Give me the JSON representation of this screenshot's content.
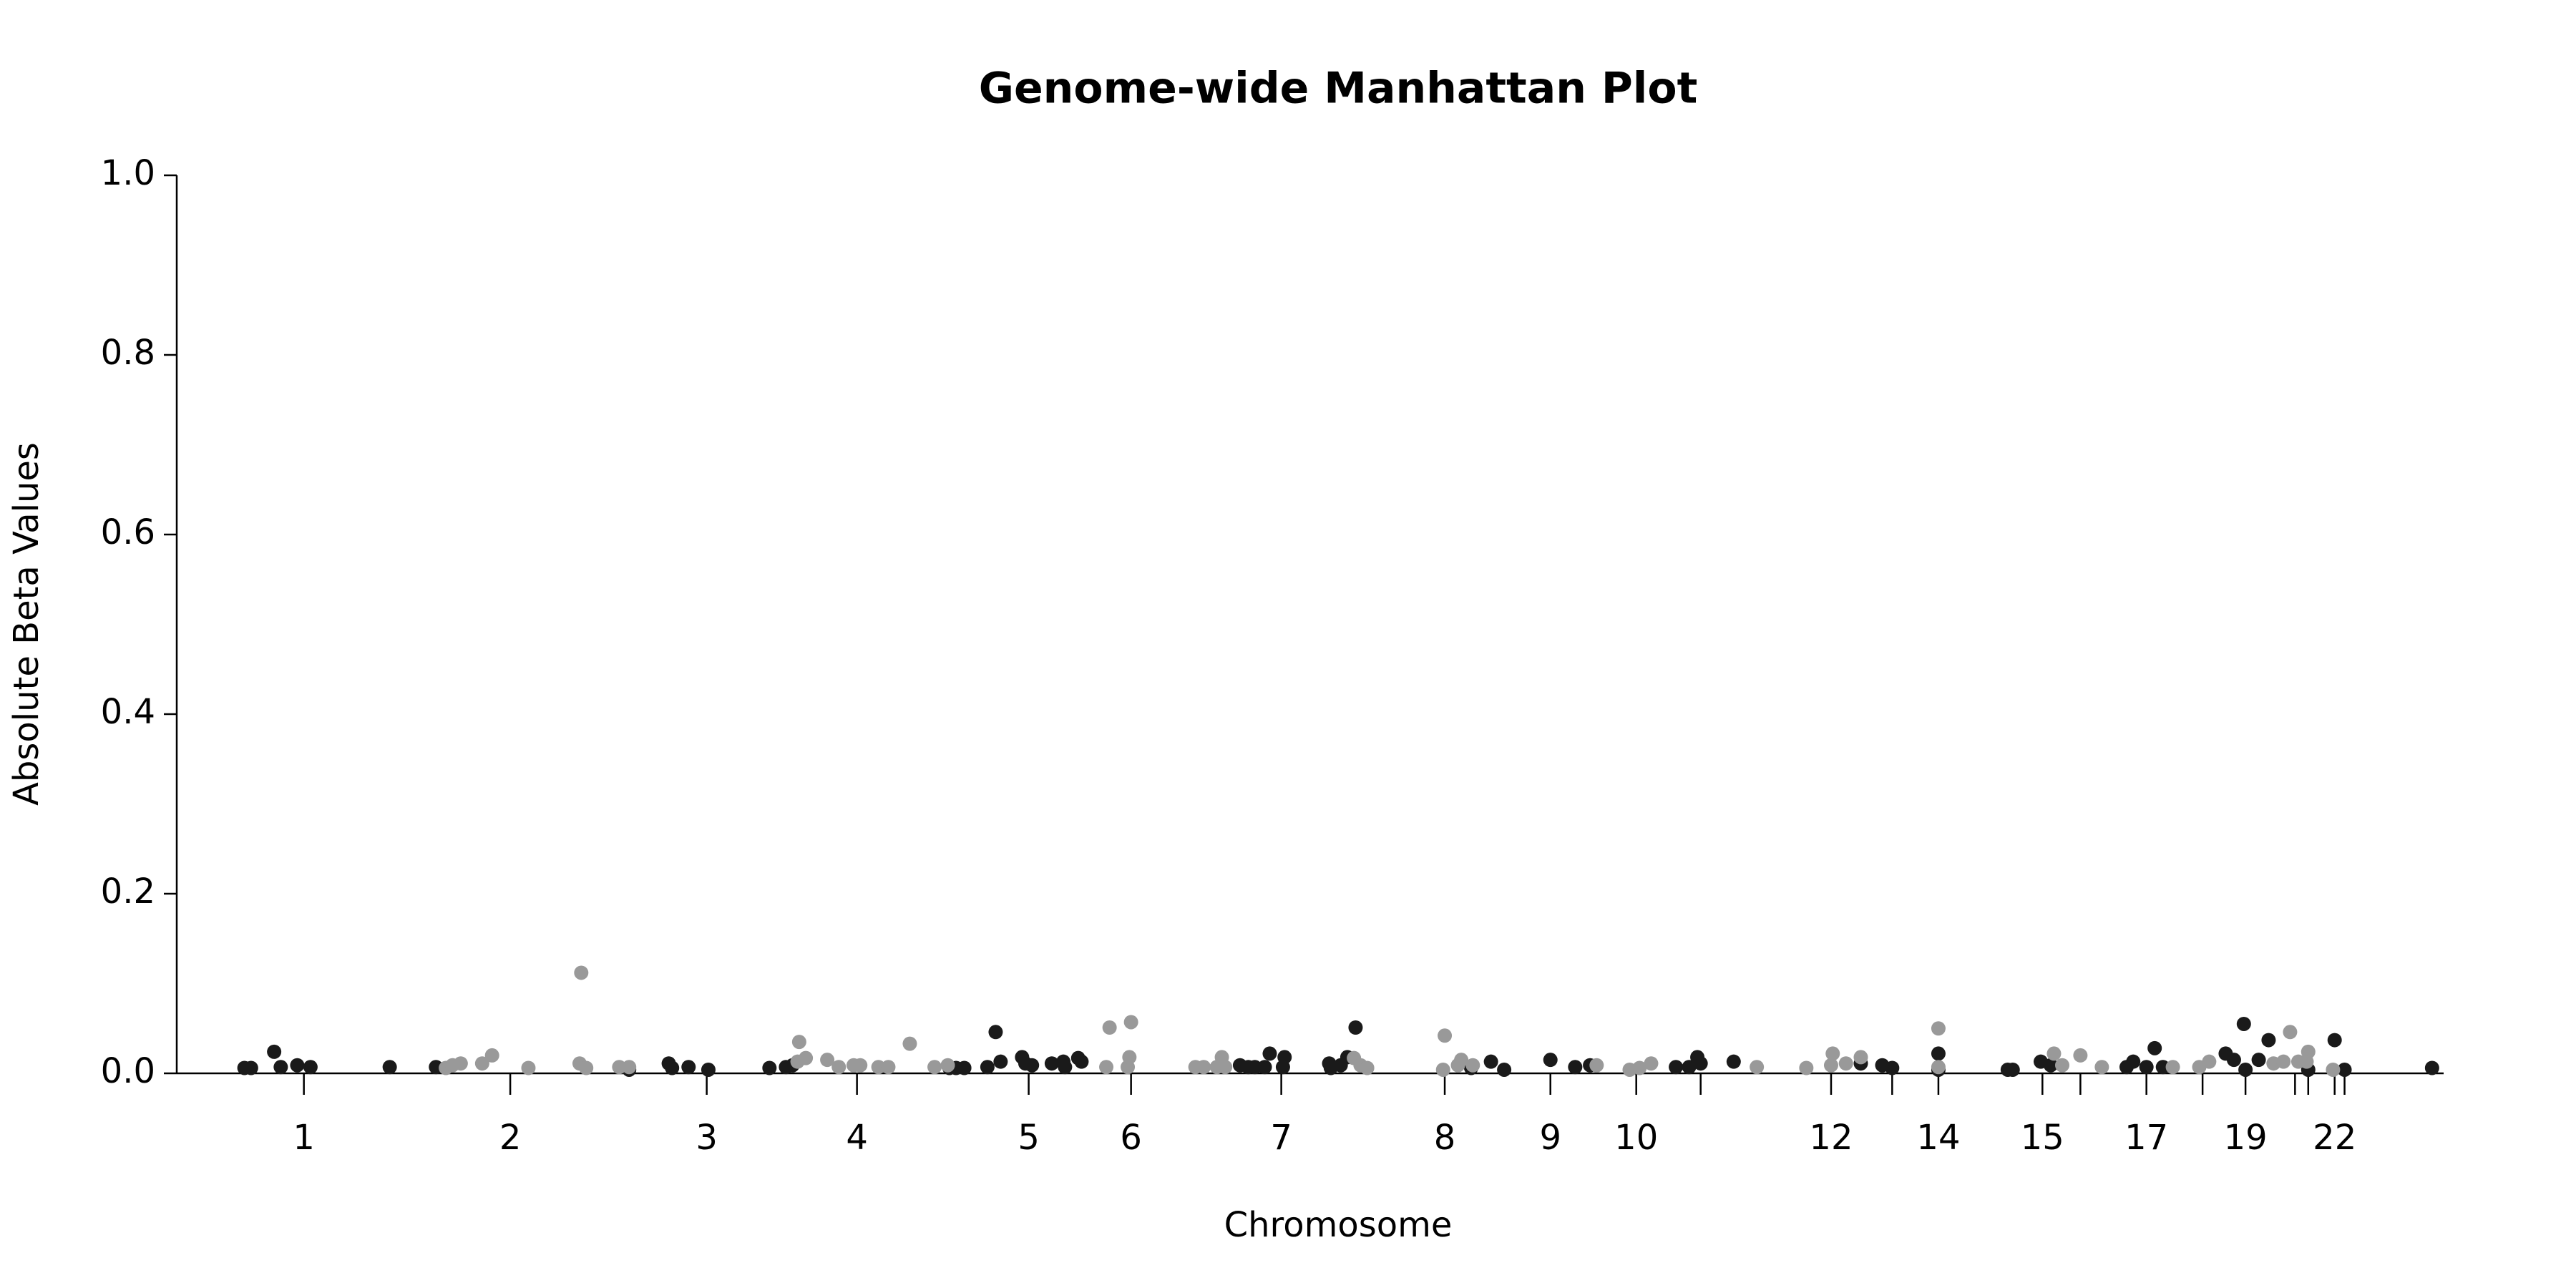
{
  "chart_data": {
    "type": "scatter",
    "title": "Genome-wide Manhattan Plot",
    "x_label": "Chromosome",
    "y_label": "Absolute Beta Values",
    "xlim": [
      0,
      1373
    ],
    "ylim": [
      0,
      1.0
    ],
    "xticks": [
      {
        "value": 77,
        "label": "1"
      },
      {
        "value": 202,
        "label": "2"
      },
      {
        "value": 321,
        "label": "3"
      },
      {
        "value": 412,
        "label": "4"
      },
      {
        "value": 516,
        "label": "5"
      },
      {
        "value": 578,
        "label": "6"
      },
      {
        "value": 669,
        "label": "7"
      },
      {
        "value": 768,
        "label": "8"
      },
      {
        "value": 832,
        "label": "9"
      },
      {
        "value": 884,
        "label": "10"
      },
      {
        "value": 923,
        "label": null
      },
      {
        "value": 1002,
        "label": "12"
      },
      {
        "value": 1039,
        "label": null
      },
      {
        "value": 1067,
        "label": "14"
      },
      {
        "value": 1130,
        "label": "15"
      },
      {
        "value": 1153,
        "label": null
      },
      {
        "value": 1193,
        "label": "17"
      },
      {
        "value": 1227,
        "label": null
      },
      {
        "value": 1253,
        "label": "19"
      },
      {
        "value": 1283,
        "label": null
      },
      {
        "value": 1291,
        "label": null
      },
      {
        "value": 1307,
        "label": "22"
      },
      {
        "value": 1313,
        "label": null
      }
    ],
    "yticks": [
      {
        "value": 0,
        "label": "0.0"
      },
      0.2,
      0.4,
      0.6,
      0.8,
      {
        "value": 1,
        "label": "1.0"
      }
    ],
    "grid": false,
    "series": [
      {
        "color": "#1a1a1a",
        "x": [
          41,
          45,
          59,
          63,
          73,
          81,
          129,
          157,
          274,
          298,
          300,
          310,
          322,
          359,
          369,
          373,
          468,
          472,
          477,
          491,
          496,
          499,
          512,
          514,
          518,
          530,
          537,
          538,
          546,
          548,
          644,
          649,
          653,
          659,
          662,
          670,
          671,
          698,
          699,
          705,
          709,
          714,
          784,
          796,
          804,
          832,
          847,
          856,
          908,
          916,
          921,
          923,
          943,
          1020,
          1033,
          1039,
          1067,
          1067,
          1109,
          1112,
          1129,
          1135,
          1181,
          1185,
          1193,
          1198,
          1203,
          1241,
          1246,
          1252,
          1253,
          1261,
          1267,
          1291,
          1307,
          1313,
          1366
        ],
        "values": [
          0.006,
          0.006,
          0.024,
          0.007,
          0.009,
          0.007,
          0.007,
          0.007,
          0.004,
          0.011,
          0.006,
          0.007,
          0.004,
          0.006,
          0.007,
          0.009,
          0.006,
          0.006,
          0.006,
          0.007,
          0.046,
          0.013,
          0.018,
          0.011,
          0.009,
          0.011,
          0.013,
          0.007,
          0.017,
          0.013,
          0.009,
          0.007,
          0.007,
          0.007,
          0.022,
          0.007,
          0.018,
          0.011,
          0.006,
          0.009,
          0.018,
          0.051,
          0.006,
          0.013,
          0.004,
          0.015,
          0.007,
          0.009,
          0.007,
          0.007,
          0.018,
          0.011,
          0.013,
          0.011,
          0.009,
          0.006,
          0.022,
          0.004,
          0.004,
          0.004,
          0.013,
          0.009,
          0.007,
          0.013,
          0.007,
          0.028,
          0.007,
          0.022,
          0.015,
          0.055,
          0.004,
          0.015,
          0.037,
          0.004,
          0.037,
          0.004,
          0.006
        ]
      },
      {
        "color": "#999999",
        "x": [
          163,
          167,
          172,
          185,
          191,
          213,
          244,
          245,
          248,
          268,
          274,
          376,
          377,
          381,
          394,
          401,
          410,
          414,
          425,
          431,
          444,
          459,
          467,
          563,
          565,
          576,
          577,
          578,
          617,
          622,
          630,
          633,
          635,
          713,
          717,
          721,
          767,
          768,
          776,
          778,
          785,
          860,
          880,
          886,
          893,
          957,
          987,
          1002,
          1003,
          1011,
          1020,
          1067,
          1067,
          1137,
          1142,
          1153,
          1166,
          1209,
          1225,
          1231,
          1270,
          1276,
          1280,
          1285,
          1290,
          1291,
          1306
        ],
        "values": [
          0.006,
          0.009,
          0.011,
          0.011,
          0.02,
          0.006,
          0.011,
          0.112,
          0.006,
          0.007,
          0.007,
          0.013,
          0.035,
          0.017,
          0.015,
          0.007,
          0.009,
          0.009,
          0.007,
          0.007,
          0.033,
          0.007,
          0.009,
          0.007,
          0.051,
          0.007,
          0.018,
          0.057,
          0.007,
          0.007,
          0.007,
          0.018,
          0.007,
          0.017,
          0.009,
          0.006,
          0.004,
          0.042,
          0.009,
          0.015,
          0.009,
          0.009,
          0.004,
          0.006,
          0.011,
          0.007,
          0.006,
          0.009,
          0.022,
          0.011,
          0.018,
          0.05,
          0.007,
          0.022,
          0.009,
          0.02,
          0.007,
          0.007,
          0.007,
          0.013,
          0.011,
          0.013,
          0.046,
          0.013,
          0.013,
          0.024,
          0.004
        ]
      }
    ]
  }
}
